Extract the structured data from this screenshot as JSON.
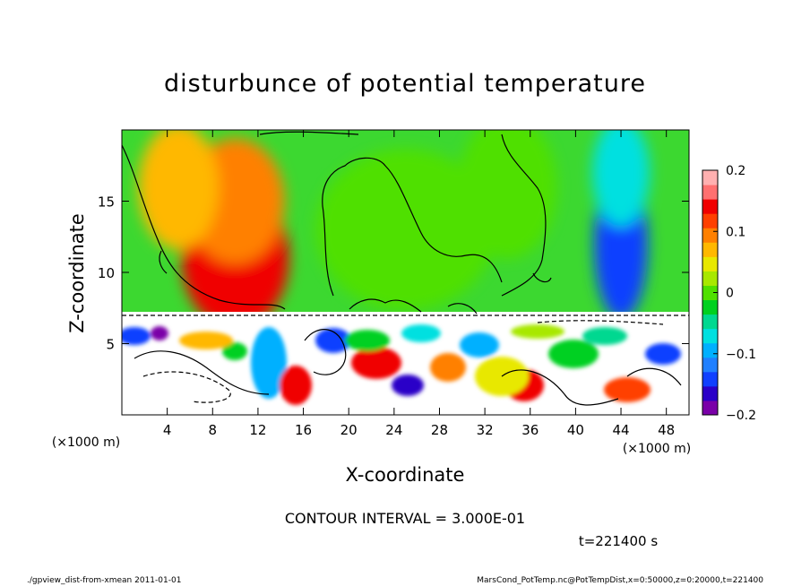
{
  "chart_data": {
    "type": "heatmap",
    "title": "disturbunce of potential temperature",
    "xlabel": "X-coordinate",
    "ylabel": "Z-coordinate",
    "x_unit": "(×1000 m)",
    "y_unit": "(×1000 m)",
    "xlim": [
      0,
      50
    ],
    "ylim": [
      0,
      20
    ],
    "x_ticks": [
      4,
      8,
      12,
      16,
      20,
      24,
      28,
      32,
      36,
      40,
      44,
      48
    ],
    "y_ticks": [
      5,
      10,
      15
    ],
    "colorbar": {
      "range": [
        -0.2,
        0.2
      ],
      "tick_values": [
        0.2,
        0.1,
        0,
        -0.1,
        -0.2
      ],
      "tick_labels": [
        "0.2",
        "0.1",
        "0",
        "−0.1",
        "−0.2"
      ],
      "colors": [
        "#7a00a8",
        "#2a00c8",
        "#1040ff",
        "#2080ff",
        "#00b0ff",
        "#00e0e0",
        "#00d890",
        "#00d020",
        "#50e000",
        "#a8e800",
        "#e8e800",
        "#ffb800",
        "#ff8000",
        "#ff4000",
        "#f00000",
        "#ff7070",
        "#ffb0b0"
      ]
    },
    "contour_interval": "CONTOUR INTERVAL = 3.000E-01",
    "time_label": "t=221400 s",
    "regions": [
      {
        "x": 10,
        "z": 11,
        "value": 0.15
      },
      {
        "x": 10,
        "z": 15,
        "value": 0.1
      },
      {
        "x": 5,
        "z": 16,
        "value": 0.07
      },
      {
        "x": 44,
        "z": 12,
        "value": -0.14
      },
      {
        "x": 44,
        "z": 17,
        "value": -0.07
      },
      {
        "x": 25,
        "z": 13,
        "value": 0.0
      },
      {
        "x": 34,
        "z": 16,
        "value": 0.01
      }
    ]
  },
  "footer": {
    "left": "./gpview_dist-from-xmean  2011-01-01",
    "right": "MarsCond_PotTemp.nc@PotTempDist,x=0:50000,z=0:20000,t=221400"
  },
  "colors": {
    "background": "#ffffff",
    "plot_upper_base": "#3cd830",
    "plot_lower_base": "#ffffff"
  }
}
